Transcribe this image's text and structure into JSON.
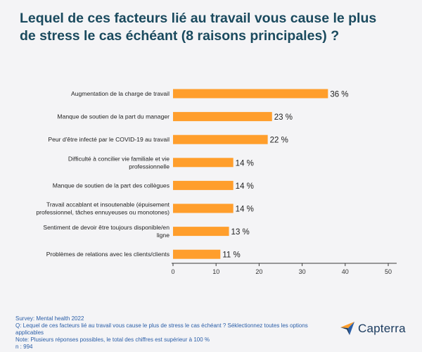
{
  "title_lines": [
    "Lequel de ces facteurs lié au travail vous cause le plus",
    "de stress le cas échéant (8 raisons principales) ?"
  ],
  "chart_data": {
    "type": "bar",
    "orientation": "horizontal",
    "title": "Lequel de ces facteurs lié au travail vous cause le plus de stress le cas échéant (8 raisons principales) ?",
    "categories": [
      [
        "Augmentation de la charge de travail"
      ],
      [
        "Manque de soutien de la part du manager"
      ],
      [
        "Peur d'être infecté par le COVID-19 au travail"
      ],
      [
        "Difficulté à concilier vie familiale et vie",
        "professionnelle"
      ],
      [
        "Manque de soutien de la part des collègues"
      ],
      [
        "Travail accablant et insoutenable (épuisement",
        "professionnel, tâches ennuyeuses ou monotones)"
      ],
      [
        "Sentiment de devoir être toujours disponible/en",
        "ligne"
      ],
      [
        "Problèmes de relations avec les clients/clients"
      ]
    ],
    "values": [
      36,
      23,
      22,
      14,
      14,
      14,
      13,
      11
    ],
    "value_labels": [
      "36 %",
      "23 %",
      "22 %",
      "14 %",
      "14 %",
      "14 %",
      "13 %",
      "11 %"
    ],
    "xlim": [
      0,
      50
    ],
    "xticks": [
      0,
      10,
      20,
      30,
      40,
      50
    ],
    "xlabel": "",
    "ylabel": "",
    "bar_color": "#ff9e2c"
  },
  "footer": {
    "survey": "Survey: Mental health 2022",
    "question": "Q:  Lequel de ces facteurs lié au travail vous cause le plus de stress le cas échéant ? Séklectionnez toutes les options applicables",
    "note": "Note: Plusieurs réponses possibles, le total des chiffres est supérieur à 100 %",
    "n": "n : 994"
  },
  "logo": {
    "name": "Capterra",
    "icon": "capterra-arrow-icon"
  },
  "colors": {
    "title": "#1a4a5e",
    "footer_text": "#2a5ea8",
    "bar": "#ff9e2c",
    "background": "#f4f4f6"
  }
}
